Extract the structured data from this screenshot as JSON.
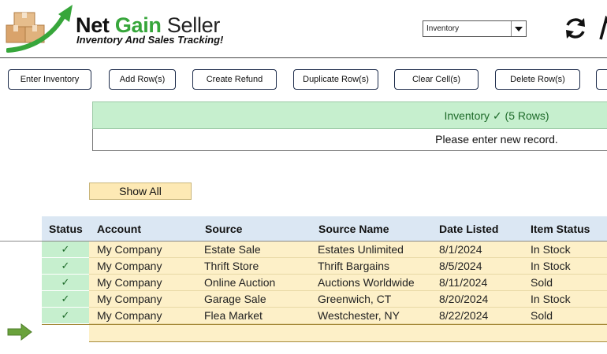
{
  "brand": {
    "word1": "Net",
    "word2": "Gain",
    "word3": "Seller",
    "tagline": "Inventory And Sales Tracking!"
  },
  "sheet_select": {
    "value": "Inventory"
  },
  "toolbar": {
    "buttons": [
      {
        "label": "Enter Inventory"
      },
      {
        "label": "Add Row(s)"
      },
      {
        "label": "Create Refund"
      },
      {
        "label": "Duplicate Row(s)"
      },
      {
        "label": "Clear Cell(s)"
      },
      {
        "label": "Delete Row(s)"
      }
    ]
  },
  "banner": {
    "status": "Inventory ✓ (5 Rows)",
    "message": "Please enter new record."
  },
  "show_all": "Show All",
  "table": {
    "columns": [
      "Status",
      "Account",
      "Source",
      "Source Name",
      "Date Listed",
      "Item Status"
    ],
    "rows": [
      {
        "status": "✓",
        "account": "My Company",
        "source": "Estate Sale",
        "source_name": "Estates Unlimited",
        "date_listed": "8/1/2024",
        "item_status": "In Stock"
      },
      {
        "status": "✓",
        "account": "My Company",
        "source": "Thrift Store",
        "source_name": "Thrift Bargains",
        "date_listed": "8/5/2024",
        "item_status": "In Stock"
      },
      {
        "status": "✓",
        "account": "My Company",
        "source": "Online Auction",
        "source_name": "Auctions Worldwide",
        "date_listed": "8/11/2024",
        "item_status": "Sold"
      },
      {
        "status": "✓",
        "account": "My Company",
        "source": "Garage Sale",
        "source_name": "Greenwich, CT",
        "date_listed": "8/20/2024",
        "item_status": "In Stock"
      },
      {
        "status": "✓",
        "account": "My Company",
        "source": "Flea Market",
        "source_name": "Westchester, NY",
        "date_listed": "8/22/2024",
        "item_status": "Sold"
      }
    ]
  },
  "colors": {
    "brand_green": "#37a63b",
    "status_green_bg": "#c6efce",
    "row_yellow_bg": "#fdf0c8",
    "header_blue_bg": "#dbe7f3",
    "arrow_green": "#6aa23c"
  },
  "icons": {
    "logo": "boxes-with-rising-arrow-logo",
    "refresh": "refresh-icon",
    "current_row": "right-arrow-icon"
  }
}
